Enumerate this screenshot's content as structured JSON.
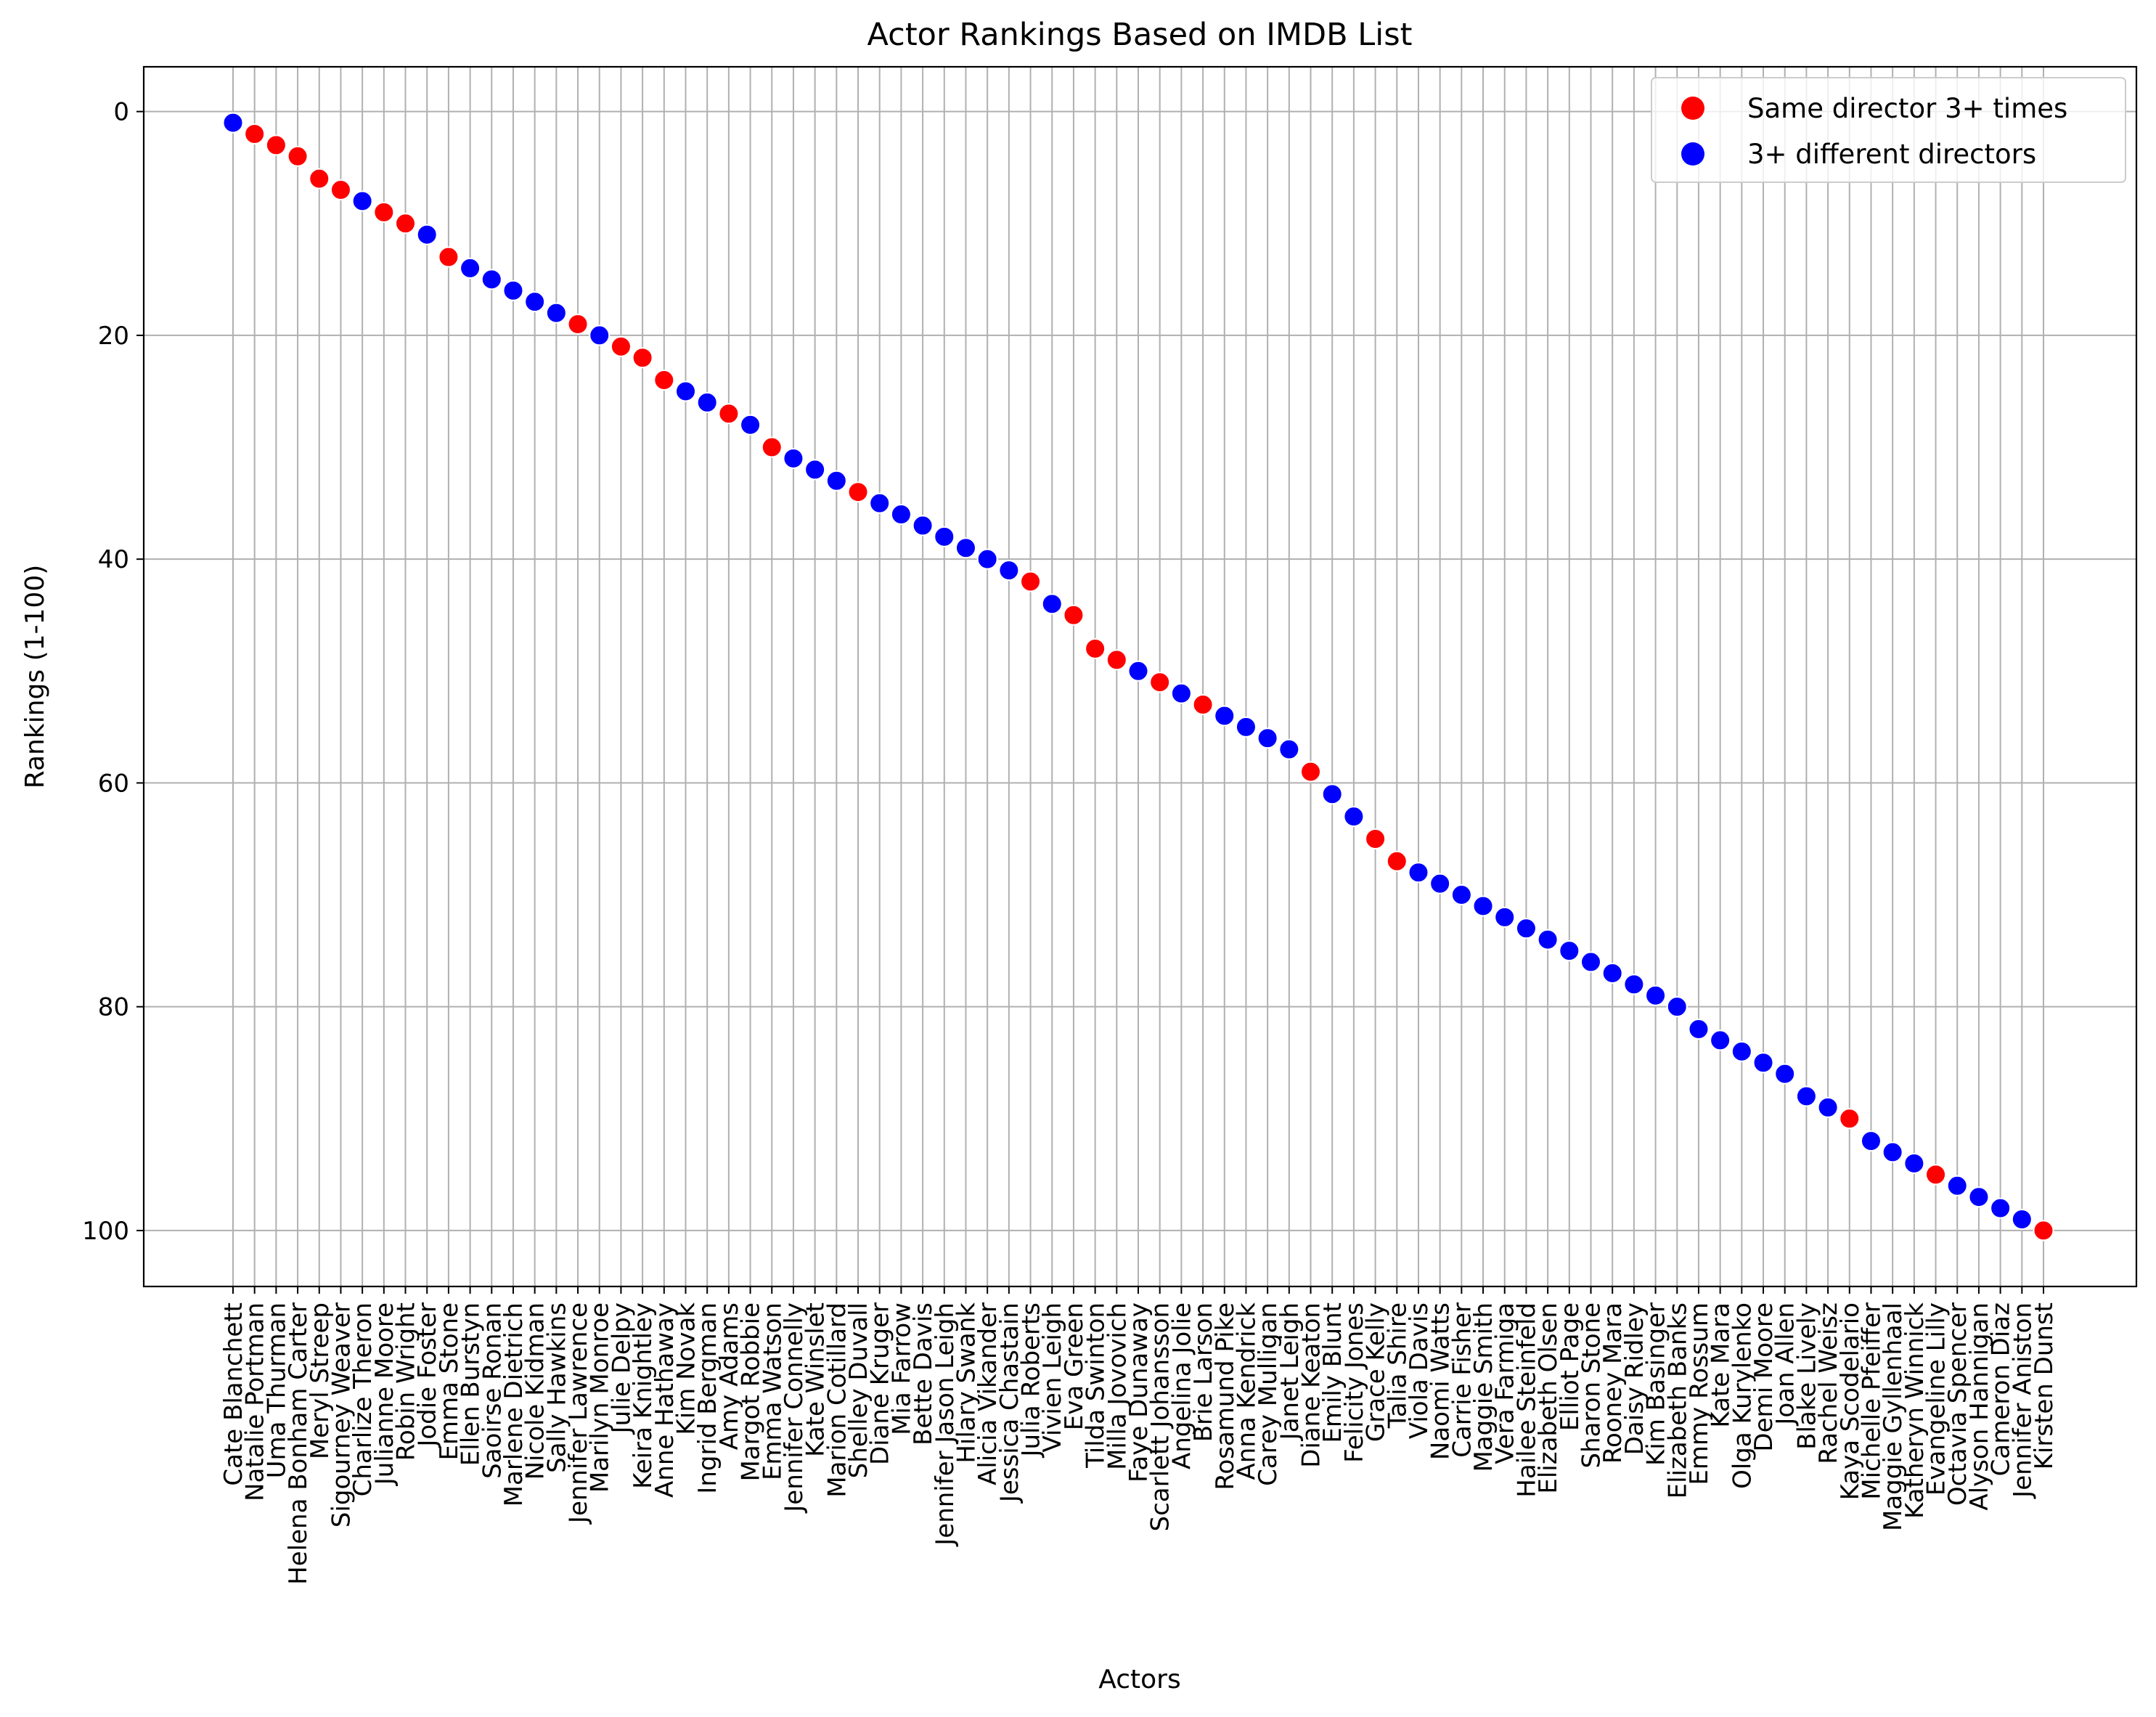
{
  "chart_data": {
    "type": "scatter",
    "title": "Actor Rankings Based on IMDB List",
    "xlabel": "Actors",
    "ylabel": "Rankings (1-100)",
    "ylim": [
      105,
      -4
    ],
    "y_inverted": true,
    "yticks": [
      0,
      20,
      40,
      60,
      80,
      100
    ],
    "grid": true,
    "legend_position": "top-right",
    "colors": {
      "same": "#ff0000",
      "different": "#0000ff",
      "grid": "#b0b0b0"
    },
    "legend": [
      {
        "key": "same",
        "label": "Same director 3+ times"
      },
      {
        "key": "different",
        "label": "3+ different directors"
      }
    ],
    "points": [
      {
        "actor": "Cate Blanchett",
        "rank": 1,
        "group": "different"
      },
      {
        "actor": "Natalie Portman",
        "rank": 2,
        "group": "same"
      },
      {
        "actor": "Uma Thurman",
        "rank": 3,
        "group": "same"
      },
      {
        "actor": "Helena Bonham Carter",
        "rank": 4,
        "group": "same"
      },
      {
        "actor": "Meryl Streep",
        "rank": 6,
        "group": "same"
      },
      {
        "actor": "Sigourney Weaver",
        "rank": 7,
        "group": "same"
      },
      {
        "actor": "Charlize Theron",
        "rank": 8,
        "group": "different"
      },
      {
        "actor": "Julianne Moore",
        "rank": 9,
        "group": "same"
      },
      {
        "actor": "Robin Wright",
        "rank": 10,
        "group": "same"
      },
      {
        "actor": "Jodie Foster",
        "rank": 11,
        "group": "different"
      },
      {
        "actor": "Emma Stone",
        "rank": 13,
        "group": "same"
      },
      {
        "actor": "Ellen Burstyn",
        "rank": 14,
        "group": "different"
      },
      {
        "actor": "Saoirse Ronan",
        "rank": 15,
        "group": "different"
      },
      {
        "actor": "Marlene Dietrich",
        "rank": 16,
        "group": "different"
      },
      {
        "actor": "Nicole Kidman",
        "rank": 17,
        "group": "different"
      },
      {
        "actor": "Sally Hawkins",
        "rank": 18,
        "group": "different"
      },
      {
        "actor": "Jennifer Lawrence",
        "rank": 19,
        "group": "same"
      },
      {
        "actor": "Marilyn Monroe",
        "rank": 20,
        "group": "different"
      },
      {
        "actor": "Julie Delpy",
        "rank": 21,
        "group": "same"
      },
      {
        "actor": "Keira Knightley",
        "rank": 22,
        "group": "same"
      },
      {
        "actor": "Anne Hathaway",
        "rank": 24,
        "group": "same"
      },
      {
        "actor": "Kim Novak",
        "rank": 25,
        "group": "different"
      },
      {
        "actor": "Ingrid Bergman",
        "rank": 26,
        "group": "different"
      },
      {
        "actor": "Amy Adams",
        "rank": 27,
        "group": "same"
      },
      {
        "actor": "Margot Robbie",
        "rank": 28,
        "group": "different"
      },
      {
        "actor": "Emma Watson",
        "rank": 30,
        "group": "same"
      },
      {
        "actor": "Jennifer Connelly",
        "rank": 31,
        "group": "different"
      },
      {
        "actor": "Kate Winslet",
        "rank": 32,
        "group": "different"
      },
      {
        "actor": "Marion Cotillard",
        "rank": 33,
        "group": "different"
      },
      {
        "actor": "Shelley Duvall",
        "rank": 34,
        "group": "same"
      },
      {
        "actor": "Diane Kruger",
        "rank": 35,
        "group": "different"
      },
      {
        "actor": "Mia Farrow",
        "rank": 36,
        "group": "different"
      },
      {
        "actor": "Bette Davis",
        "rank": 37,
        "group": "different"
      },
      {
        "actor": "Jennifer Jason Leigh",
        "rank": 38,
        "group": "different"
      },
      {
        "actor": "Hilary Swank",
        "rank": 39,
        "group": "different"
      },
      {
        "actor": "Alicia Vikander",
        "rank": 40,
        "group": "different"
      },
      {
        "actor": "Jessica Chastain",
        "rank": 41,
        "group": "different"
      },
      {
        "actor": "Julia Roberts",
        "rank": 42,
        "group": "same"
      },
      {
        "actor": "Vivien Leigh",
        "rank": 44,
        "group": "different"
      },
      {
        "actor": "Eva Green",
        "rank": 45,
        "group": "same"
      },
      {
        "actor": "Tilda Swinton",
        "rank": 48,
        "group": "same"
      },
      {
        "actor": "Milla Jovovich",
        "rank": 49,
        "group": "same"
      },
      {
        "actor": "Faye Dunaway",
        "rank": 50,
        "group": "different"
      },
      {
        "actor": "Scarlett Johansson",
        "rank": 51,
        "group": "same"
      },
      {
        "actor": "Angelina Jolie",
        "rank": 52,
        "group": "different"
      },
      {
        "actor": "Brie Larson",
        "rank": 53,
        "group": "same"
      },
      {
        "actor": "Rosamund Pike",
        "rank": 54,
        "group": "different"
      },
      {
        "actor": "Anna Kendrick",
        "rank": 55,
        "group": "different"
      },
      {
        "actor": "Carey Mulligan",
        "rank": 56,
        "group": "different"
      },
      {
        "actor": "Janet Leigh",
        "rank": 57,
        "group": "different"
      },
      {
        "actor": "Diane Keaton",
        "rank": 59,
        "group": "same"
      },
      {
        "actor": "Emily Blunt",
        "rank": 61,
        "group": "different"
      },
      {
        "actor": "Felicity Jones",
        "rank": 63,
        "group": "different"
      },
      {
        "actor": "Grace Kelly",
        "rank": 65,
        "group": "same"
      },
      {
        "actor": "Talia Shire",
        "rank": 67,
        "group": "same"
      },
      {
        "actor": "Viola Davis",
        "rank": 68,
        "group": "different"
      },
      {
        "actor": "Naomi Watts",
        "rank": 69,
        "group": "different"
      },
      {
        "actor": "Carrie Fisher",
        "rank": 70,
        "group": "different"
      },
      {
        "actor": "Maggie Smith",
        "rank": 71,
        "group": "different"
      },
      {
        "actor": "Vera Farmiga",
        "rank": 72,
        "group": "different"
      },
      {
        "actor": "Hailee Steinfeld",
        "rank": 73,
        "group": "different"
      },
      {
        "actor": "Elizabeth Olsen",
        "rank": 74,
        "group": "different"
      },
      {
        "actor": "Elliot Page",
        "rank": 75,
        "group": "different"
      },
      {
        "actor": "Sharon Stone",
        "rank": 76,
        "group": "different"
      },
      {
        "actor": "Rooney Mara",
        "rank": 77,
        "group": "different"
      },
      {
        "actor": "Daisy Ridley",
        "rank": 78,
        "group": "different"
      },
      {
        "actor": "Kim Basinger",
        "rank": 79,
        "group": "different"
      },
      {
        "actor": "Elizabeth Banks",
        "rank": 80,
        "group": "different"
      },
      {
        "actor": "Emmy Rossum",
        "rank": 82,
        "group": "different"
      },
      {
        "actor": "Kate Mara",
        "rank": 83,
        "group": "different"
      },
      {
        "actor": "Olga Kurylenko",
        "rank": 84,
        "group": "different"
      },
      {
        "actor": "Demi Moore",
        "rank": 85,
        "group": "different"
      },
      {
        "actor": "Joan Allen",
        "rank": 86,
        "group": "different"
      },
      {
        "actor": "Blake Lively",
        "rank": 88,
        "group": "different"
      },
      {
        "actor": "Rachel Weisz",
        "rank": 89,
        "group": "different"
      },
      {
        "actor": "Kaya Scodelario",
        "rank": 90,
        "group": "same"
      },
      {
        "actor": "Michelle Pfeiffer",
        "rank": 92,
        "group": "different"
      },
      {
        "actor": "Maggie Gyllenhaal",
        "rank": 93,
        "group": "different"
      },
      {
        "actor": "Katheryn Winnick",
        "rank": 94,
        "group": "different"
      },
      {
        "actor": "Evangeline Lilly",
        "rank": 95,
        "group": "same"
      },
      {
        "actor": "Octavia Spencer",
        "rank": 96,
        "group": "different"
      },
      {
        "actor": "Alyson Hannigan",
        "rank": 97,
        "group": "different"
      },
      {
        "actor": "Cameron Diaz",
        "rank": 98,
        "group": "different"
      },
      {
        "actor": "Jennifer Aniston",
        "rank": 99,
        "group": "different"
      },
      {
        "actor": "Kirsten Dunst",
        "rank": 100,
        "group": "same"
      }
    ]
  }
}
